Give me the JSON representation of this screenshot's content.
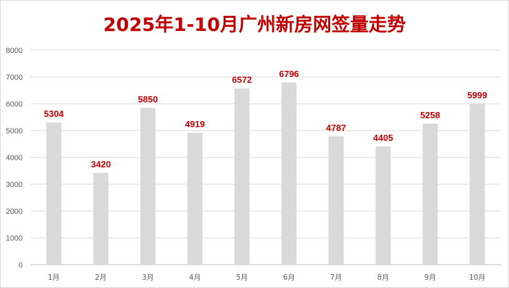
{
  "chart_data": {
    "type": "bar",
    "title": "2025年1-10月广州新房网签量走势",
    "categories": [
      "1月",
      "2月",
      "3月",
      "4月",
      "5月",
      "6月",
      "7月",
      "8月",
      "9月",
      "10月"
    ],
    "values": [
      5304,
      3420,
      5850,
      4919,
      6572,
      6796,
      4787,
      4405,
      5258,
      5999
    ],
    "ylim": [
      0,
      8000
    ],
    "yticks": [
      0,
      1000,
      2000,
      3000,
      4000,
      5000,
      6000,
      7000,
      8000
    ],
    "xlabel": "",
    "ylabel": "",
    "grid": true,
    "bar_color": "#d9d9d9",
    "label_color": "#c00000",
    "title_color": "#c00000"
  }
}
